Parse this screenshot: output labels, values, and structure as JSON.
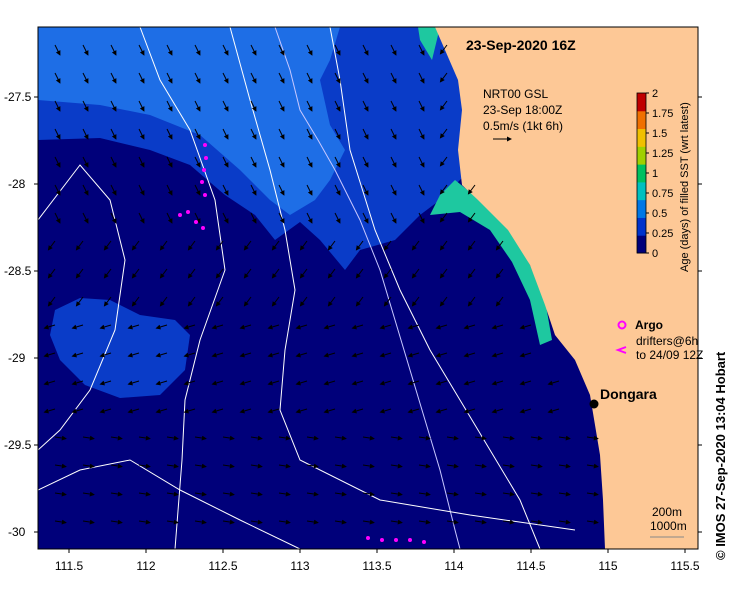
{
  "map": {
    "title": "23-Sep-2020 16Z",
    "x_ticks": [
      "111.5",
      "112",
      "112.5",
      "113",
      "113.5",
      "114",
      "114.5",
      "115",
      "115.5"
    ],
    "y_ticks": [
      "-27.5",
      "-28",
      "-28.5",
      "-29",
      "-29.5",
      "-30"
    ],
    "x_range": [
      111.3,
      115.6
    ],
    "y_range": [
      -30.1,
      -27.05
    ],
    "velocity_legend": {
      "line1": "NRT00 GSL",
      "line2": "23-Sep 18:00Z",
      "line3": "0.5m/s (1kt 6h)"
    },
    "colorbar": {
      "label": "Age (days) of filled SST (wrt latest)",
      "ticks": [
        "0",
        "0.25",
        "0.5",
        "0.75",
        "1",
        "1.25",
        "1.5",
        "1.75",
        "2"
      ],
      "colors": [
        "#00007a",
        "#0033cc",
        "#0077e6",
        "#00c0c0",
        "#00c060",
        "#a0d000",
        "#f0c000",
        "#f07000",
        "#c00000"
      ]
    },
    "legend": {
      "argo": "Argo",
      "drifters_line1": "drifters@6h",
      "drifters_line2": "to 24/09 12Z"
    },
    "place": {
      "name": "Dongara",
      "lon": 114.93,
      "lat": -29.25
    },
    "contour_legend": {
      "line1": "200m",
      "line2": "1000m"
    },
    "copyright": "©  IMOS 27-Sep-2020 13:04 Hobart",
    "colors": {
      "land": "#fdc896",
      "deep_ocean": "#00007a",
      "mid_blue": "#0a3cc8",
      "light_blue": "#1e6ee6",
      "coastal_teal": "#1ec8a0",
      "drifter_magenta": "#ff00ff"
    }
  }
}
